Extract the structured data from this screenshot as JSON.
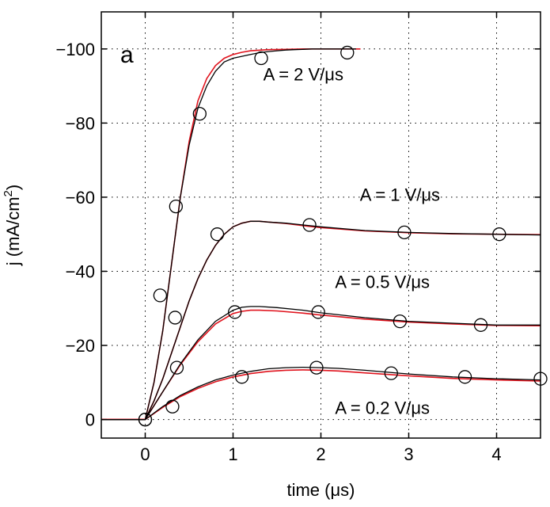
{
  "chart_data": {
    "type": "line",
    "panel_label": "a",
    "xlabel": "time (μs)",
    "ylabel_main": "j (mA/cm",
    "ylabel_sup": "2",
    "ylabel_close": ")",
    "xlim": [
      -0.5,
      4.5
    ],
    "ylim": [
      5,
      -110
    ],
    "y_direction": "reversed",
    "grid": true,
    "grid_style": "dotted",
    "xticks": [
      0,
      1,
      2,
      3,
      4
    ],
    "xtick_labels": [
      "0",
      "1",
      "2",
      "3",
      "4"
    ],
    "yticks": [
      0,
      -20,
      -40,
      -60,
      -80,
      -100
    ],
    "ytick_labels": [
      "0",
      "−20",
      "−40",
      "−60",
      "−80",
      "−100"
    ],
    "colors": {
      "measured": "#000000",
      "model": "#e0141e",
      "markers": "#000000"
    },
    "series": [
      {
        "name": "A = 2 V/μs",
        "label_pos": [
          1.8,
          -91.5
        ],
        "measured": {
          "x": [
            -0.5,
            0,
            0.1,
            0.2,
            0.3,
            0.4,
            0.5,
            0.6,
            0.7,
            0.8,
            0.9,
            1.0,
            1.1,
            1.2,
            1.3,
            1.4,
            1.5,
            1.6,
            1.7,
            1.8,
            1.9,
            2.0,
            2.2,
            2.4
          ],
          "y": [
            0,
            0,
            -10,
            -24,
            -42,
            -60,
            -74,
            -84,
            -90,
            -94,
            -96.5,
            -97.5,
            -98,
            -98.5,
            -99,
            -99.3,
            -99.5,
            -99.7,
            -99.8,
            -99.9,
            -100,
            -100,
            -100,
            -100
          ]
        },
        "model": {
          "x": [
            -0.5,
            0,
            0.1,
            0.2,
            0.3,
            0.4,
            0.5,
            0.6,
            0.7,
            0.8,
            0.9,
            1.0,
            1.1,
            1.2,
            1.4,
            1.6,
            1.8,
            2.0,
            2.2,
            2.45
          ],
          "y": [
            0,
            0,
            -10,
            -24,
            -42,
            -60,
            -75,
            -86,
            -92,
            -95.5,
            -97.5,
            -98.5,
            -99.1,
            -99.5,
            -99.8,
            -99.9,
            -100,
            -100,
            -100,
            -100
          ]
        },
        "markers": {
          "x": [
            0,
            0.35,
            0.62,
            1.32,
            2.3
          ],
          "y": [
            0,
            -57.5,
            -82.5,
            -97.5,
            -99
          ]
        }
      },
      {
        "name": "A = 1 V/μs",
        "label_pos": [
          2.9,
          -59
        ],
        "measured": {
          "x": [
            -0.5,
            0,
            0.1,
            0.2,
            0.3,
            0.4,
            0.5,
            0.6,
            0.7,
            0.8,
            0.9,
            1.0,
            1.1,
            1.2,
            1.3,
            1.4,
            1.6,
            1.8,
            2.0,
            2.5,
            3.0,
            3.5,
            4.0,
            4.5
          ],
          "y": [
            0,
            0,
            -5,
            -11,
            -18,
            -25,
            -32,
            -38,
            -43,
            -47,
            -50,
            -52,
            -53,
            -53.5,
            -53.5,
            -53.3,
            -53,
            -52.5,
            -52,
            -51,
            -50.5,
            -50.2,
            -50,
            -49.8
          ]
        },
        "model": {
          "x": [
            -0.5,
            0,
            0.1,
            0.2,
            0.3,
            0.4,
            0.5,
            0.6,
            0.7,
            0.8,
            0.9,
            1.0,
            1.1,
            1.2,
            1.3,
            1.4,
            1.6,
            1.8,
            2.0,
            2.5,
            3.0,
            3.5,
            4.0,
            4.5
          ],
          "y": [
            0,
            0,
            -5,
            -11,
            -18,
            -25,
            -32,
            -38,
            -43,
            -47,
            -50,
            -52,
            -53,
            -53.5,
            -53.5,
            -53.3,
            -52.9,
            -52.3,
            -51.8,
            -50.9,
            -50.4,
            -50.1,
            -50,
            -49.9
          ]
        },
        "markers": {
          "x": [
            0.17,
            0.82,
            1.87,
            2.95,
            4.03
          ],
          "y": [
            -33.5,
            -50,
            -52.5,
            -50.5,
            -50
          ]
        }
      },
      {
        "name": "A = 0.5 V/μs",
        "label_pos": [
          2.7,
          -35.5
        ],
        "measured": {
          "x": [
            -0.5,
            0,
            0.2,
            0.4,
            0.6,
            0.8,
            1.0,
            1.1,
            1.2,
            1.3,
            1.5,
            1.8,
            2.0,
            2.5,
            3.0,
            3.5,
            4.0,
            4.5
          ],
          "y": [
            0,
            0,
            -7.5,
            -15,
            -21.5,
            -26.5,
            -29.5,
            -30.3,
            -30.5,
            -30.5,
            -30.2,
            -29.5,
            -28.8,
            -27.5,
            -26.5,
            -26,
            -25.5,
            -25.5
          ]
        },
        "model": {
          "x": [
            -0.5,
            0,
            0.2,
            0.4,
            0.6,
            0.8,
            1.0,
            1.1,
            1.2,
            1.3,
            1.5,
            1.8,
            2.0,
            2.5,
            3.0,
            3.5,
            4.0,
            4.5
          ],
          "y": [
            0,
            0,
            -7.5,
            -14.8,
            -21,
            -25.8,
            -28.6,
            -29.2,
            -29.5,
            -29.5,
            -29.3,
            -28.7,
            -28.2,
            -27.1,
            -26.3,
            -25.8,
            -25.4,
            -25.3
          ]
        },
        "markers": {
          "x": [
            0.34,
            1.02,
            1.97,
            2.9,
            3.82
          ],
          "y": [
            -27.5,
            -29,
            -29,
            -26.5,
            -25.5
          ]
        }
      },
      {
        "name": "A = 0.2 V/μs",
        "label_pos": [
          2.7,
          -1.5
        ],
        "measured": {
          "x": [
            -0.5,
            0,
            0.2,
            0.4,
            0.6,
            0.8,
            1.0,
            1.2,
            1.4,
            1.6,
            1.8,
            2.0,
            2.2,
            2.5,
            3.0,
            3.5,
            4.0,
            4.5
          ],
          "y": [
            0,
            0,
            -3.5,
            -6.5,
            -8.8,
            -10.7,
            -12,
            -13,
            -13.7,
            -14,
            -14.1,
            -14,
            -13.8,
            -13.3,
            -12.3,
            -11.5,
            -11,
            -10.7
          ]
        },
        "model": {
          "x": [
            -0.5,
            0,
            0.2,
            0.4,
            0.6,
            0.8,
            1.0,
            1.2,
            1.4,
            1.6,
            1.8,
            2.0,
            2.2,
            2.5,
            3.0,
            3.5,
            4.0,
            4.5
          ],
          "y": [
            0,
            0,
            -3.3,
            -6.2,
            -8.4,
            -10.2,
            -11.5,
            -12.4,
            -13,
            -13.3,
            -13.4,
            -13.3,
            -13.1,
            -12.6,
            -11.8,
            -11.1,
            -10.7,
            -10.4
          ]
        },
        "markers": {
          "x": [
            0.36,
            0.31,
            1.1,
            1.95,
            2.8,
            3.64,
            4.5
          ],
          "y": [
            -14,
            -3.5,
            -11.5,
            -14,
            -12.5,
            -11.5,
            -11
          ]
        }
      }
    ]
  }
}
